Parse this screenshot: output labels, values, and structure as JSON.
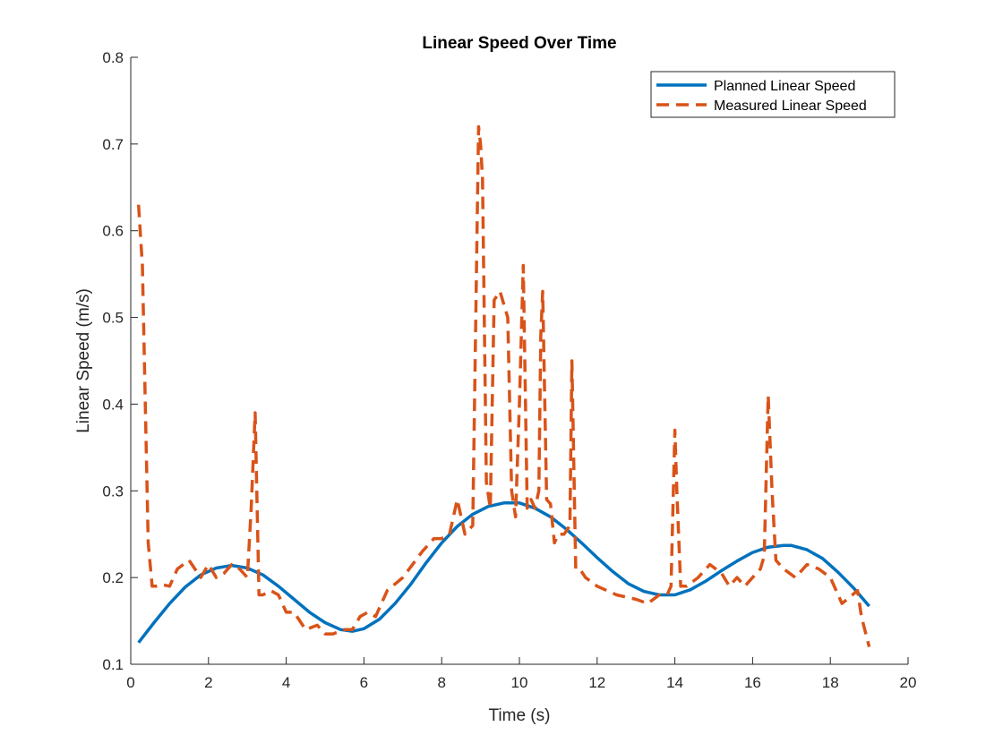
{
  "chart_data": {
    "type": "line",
    "title": "Linear Speed Over Time",
    "xlabel": "Time (s)",
    "ylabel": "Linear Speed (m/s)",
    "xlim": [
      0,
      20
    ],
    "ylim": [
      0.1,
      0.8
    ],
    "xticks": [
      0,
      2,
      4,
      6,
      8,
      10,
      12,
      14,
      16,
      18,
      20
    ],
    "yticks": [
      0.1,
      0.2,
      0.3,
      0.4,
      0.5,
      0.6,
      0.7,
      0.8
    ],
    "grid": false,
    "legend_position": "top-right",
    "series": [
      {
        "name": "Planned Linear Speed",
        "color": "#0072BD",
        "style": "solid",
        "x": [
          0.2,
          0.6,
          1.0,
          1.4,
          1.8,
          2.2,
          2.6,
          3.0,
          3.4,
          3.8,
          4.2,
          4.6,
          5.0,
          5.4,
          5.7,
          6.0,
          6.4,
          6.8,
          7.2,
          7.6,
          8.0,
          8.4,
          8.8,
          9.2,
          9.6,
          10.0,
          10.4,
          10.8,
          11.2,
          11.6,
          12.0,
          12.4,
          12.8,
          13.2,
          13.6,
          14.0,
          14.4,
          14.8,
          15.2,
          15.6,
          16.0,
          16.4,
          16.8,
          17.0,
          17.4,
          17.8,
          18.2,
          18.6,
          19.0
        ],
        "y": [
          0.125,
          0.148,
          0.17,
          0.189,
          0.203,
          0.211,
          0.214,
          0.211,
          0.203,
          0.19,
          0.175,
          0.16,
          0.148,
          0.14,
          0.138,
          0.141,
          0.152,
          0.17,
          0.192,
          0.217,
          0.24,
          0.259,
          0.273,
          0.282,
          0.286,
          0.286,
          0.28,
          0.27,
          0.256,
          0.24,
          0.223,
          0.207,
          0.193,
          0.184,
          0.18,
          0.18,
          0.186,
          0.196,
          0.208,
          0.219,
          0.229,
          0.235,
          0.237,
          0.237,
          0.232,
          0.222,
          0.206,
          0.188,
          0.167
        ]
      },
      {
        "name": "Measured Linear Speed",
        "color": "#D95319",
        "style": "dashed",
        "x": [
          0.2,
          0.3,
          0.45,
          0.55,
          0.65,
          0.8,
          1.0,
          1.2,
          1.5,
          1.8,
          2.0,
          2.2,
          2.4,
          2.6,
          2.8,
          3.0,
          3.1,
          3.2,
          3.3,
          3.4,
          3.6,
          3.8,
          4.0,
          4.2,
          4.5,
          4.8,
          5.0,
          5.2,
          5.5,
          5.7,
          5.9,
          6.1,
          6.3,
          6.6,
          7.0,
          7.5,
          7.8,
          8.0,
          8.2,
          8.4,
          8.5,
          8.6,
          8.8,
          8.95,
          9.0,
          9.05,
          9.15,
          9.25,
          9.35,
          9.5,
          9.7,
          9.8,
          9.9,
          10.0,
          10.1,
          10.2,
          10.3,
          10.4,
          10.5,
          10.55,
          10.6,
          10.7,
          10.8,
          10.9,
          11.0,
          11.15,
          11.3,
          11.35,
          11.45,
          11.55,
          11.7,
          12.0,
          12.5,
          13.0,
          13.3,
          13.6,
          13.8,
          13.9,
          14.0,
          14.05,
          14.15,
          14.3,
          14.6,
          14.9,
          15.2,
          15.4,
          15.6,
          15.8,
          16.0,
          16.2,
          16.3,
          16.4,
          16.5,
          16.6,
          16.8,
          17.1,
          17.4,
          17.7,
          18.0,
          18.3,
          18.7,
          18.8,
          19.0
        ],
        "y": [
          0.63,
          0.56,
          0.24,
          0.19,
          0.19,
          0.192,
          0.19,
          0.21,
          0.22,
          0.2,
          0.215,
          0.2,
          0.205,
          0.215,
          0.21,
          0.2,
          0.28,
          0.39,
          0.18,
          0.18,
          0.185,
          0.18,
          0.16,
          0.16,
          0.14,
          0.145,
          0.135,
          0.135,
          0.14,
          0.14,
          0.155,
          0.16,
          0.155,
          0.185,
          0.2,
          0.23,
          0.245,
          0.245,
          0.25,
          0.29,
          0.27,
          0.25,
          0.26,
          0.72,
          0.7,
          0.66,
          0.31,
          0.28,
          0.52,
          0.53,
          0.5,
          0.3,
          0.27,
          0.4,
          0.56,
          0.28,
          0.29,
          0.28,
          0.3,
          0.48,
          0.53,
          0.29,
          0.285,
          0.24,
          0.25,
          0.25,
          0.26,
          0.45,
          0.21,
          0.21,
          0.2,
          0.19,
          0.18,
          0.175,
          0.17,
          0.18,
          0.18,
          0.19,
          0.37,
          0.3,
          0.19,
          0.19,
          0.2,
          0.215,
          0.205,
          0.19,
          0.2,
          0.19,
          0.2,
          0.21,
          0.225,
          0.41,
          0.3,
          0.22,
          0.21,
          0.2,
          0.215,
          0.21,
          0.2,
          0.17,
          0.185,
          0.155,
          0.12
        ]
      }
    ]
  }
}
